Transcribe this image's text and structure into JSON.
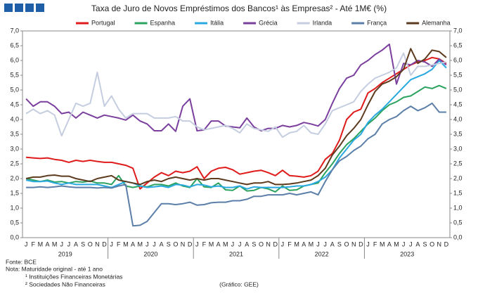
{
  "chart_data": {
    "type": "line",
    "title": "Taxa de Juro de Novos Empréstimos dos Bancos¹ às Empresas² - Até 1M€ (%)",
    "categories": [
      "J",
      "F",
      "M",
      "A",
      "M",
      "J",
      "J",
      "A",
      "S",
      "O",
      "N",
      "D",
      "J",
      "F",
      "M",
      "A",
      "M",
      "J",
      "J",
      "A",
      "S",
      "O",
      "N",
      "D",
      "J",
      "F",
      "M",
      "A",
      "M",
      "J",
      "J",
      "A",
      "S",
      "O",
      "N",
      "D",
      "J",
      "F",
      "M",
      "A",
      "M",
      "J",
      "J",
      "A",
      "S",
      "O",
      "N",
      "D",
      "J",
      "F",
      "M",
      "A",
      "M",
      "J",
      "J",
      "A",
      "S",
      "O",
      "N",
      "D"
    ],
    "years": [
      "2019",
      "2020",
      "2021",
      "2022",
      "2023"
    ],
    "ylim": [
      0,
      7
    ],
    "yticks": [
      {
        "value": 0,
        "label": "0,0"
      },
      {
        "value": 0.5,
        "label": "0,5"
      },
      {
        "value": 1,
        "label": "1,0"
      },
      {
        "value": 1.5,
        "label": "1,5"
      },
      {
        "value": 2,
        "label": "2,0"
      },
      {
        "value": 2.5,
        "label": "2,5"
      },
      {
        "value": 3,
        "label": "3,0"
      },
      {
        "value": 3.5,
        "label": "3,5"
      },
      {
        "value": 4,
        "label": "4,0"
      },
      {
        "value": 4.5,
        "label": "4,5"
      },
      {
        "value": 5,
        "label": "5,0"
      },
      {
        "value": 5.5,
        "label": "5,5"
      },
      {
        "value": 6,
        "label": "6,0"
      },
      {
        "value": 6.5,
        "label": "6,5"
      },
      {
        "value": 7,
        "label": "7,0"
      }
    ],
    "series": [
      {
        "name": "Portugal",
        "color": "#e01b1b",
        "values": [
          2.72,
          2.7,
          2.68,
          2.7,
          2.65,
          2.62,
          2.55,
          2.62,
          2.58,
          2.62,
          2.58,
          2.55,
          2.55,
          2.5,
          2.45,
          2.35,
          1.65,
          1.85,
          2.05,
          2.2,
          2.1,
          2.25,
          2.2,
          2.25,
          2.4,
          2.0,
          2.25,
          2.35,
          2.38,
          2.3,
          2.15,
          2.2,
          2.25,
          2.28,
          2.2,
          2.1,
          2.28,
          2.1,
          2.08,
          2.05,
          2.1,
          2.25,
          2.65,
          2.85,
          3.3,
          4.0,
          4.25,
          4.35,
          4.9,
          5.05,
          5.25,
          5.4,
          5.55,
          5.7,
          5.85,
          5.95,
          6.0,
          6.1,
          6.05,
          5.9
        ]
      },
      {
        "name": "Espanha",
        "color": "#2ca25f",
        "values": [
          2.0,
          1.95,
          1.9,
          1.95,
          1.88,
          1.9,
          1.85,
          1.9,
          1.88,
          1.92,
          1.85,
          1.85,
          1.8,
          2.1,
          1.75,
          1.7,
          1.75,
          1.72,
          1.8,
          1.8,
          1.75,
          1.85,
          1.75,
          1.7,
          2.0,
          1.72,
          1.7,
          1.85,
          1.62,
          1.6,
          1.75,
          1.58,
          1.6,
          1.7,
          1.65,
          1.55,
          1.75,
          1.6,
          1.62,
          1.75,
          1.8,
          1.85,
          2.2,
          2.5,
          2.85,
          3.15,
          3.35,
          3.6,
          3.85,
          4.05,
          4.3,
          4.5,
          4.6,
          4.75,
          4.8,
          4.95,
          5.1,
          5.05,
          5.15,
          5.05
        ]
      },
      {
        "name": "Itália",
        "color": "#29a9e0",
        "values": [
          1.95,
          1.9,
          1.9,
          1.92,
          1.85,
          1.8,
          1.85,
          1.8,
          1.8,
          1.8,
          1.8,
          1.75,
          1.7,
          1.8,
          1.9,
          1.85,
          1.75,
          1.7,
          1.72,
          1.75,
          1.7,
          1.8,
          1.78,
          1.72,
          1.8,
          1.78,
          1.72,
          1.75,
          1.7,
          1.7,
          1.75,
          1.65,
          1.72,
          1.7,
          1.7,
          1.7,
          1.7,
          1.72,
          1.75,
          1.75,
          1.8,
          1.9,
          2.05,
          2.3,
          2.7,
          3.0,
          3.3,
          3.5,
          3.9,
          4.15,
          4.35,
          4.6,
          4.85,
          5.1,
          5.35,
          5.45,
          5.55,
          5.7,
          6.0,
          5.75
        ]
      },
      {
        "name": "Grécia",
        "color": "#7b3f9e",
        "values": [
          4.7,
          4.45,
          4.6,
          4.6,
          4.45,
          4.2,
          4.25,
          4.05,
          4.25,
          4.15,
          4.05,
          4.15,
          4.1,
          4.05,
          3.98,
          4.15,
          3.95,
          3.85,
          3.62,
          3.62,
          3.85,
          3.6,
          4.45,
          4.7,
          3.62,
          3.65,
          3.95,
          3.95,
          3.78,
          3.75,
          3.72,
          4.05,
          3.75,
          3.62,
          3.7,
          3.7,
          3.8,
          3.75,
          3.8,
          3.9,
          3.85,
          3.78,
          4.0,
          4.55,
          5.05,
          5.4,
          5.5,
          5.85,
          6.0,
          6.2,
          6.35,
          6.55,
          5.2,
          5.9,
          5.85,
          6.0,
          5.95,
          5.8,
          6.05,
          5.85
        ]
      },
      {
        "name": "Irlanda",
        "color": "#c5cde0",
        "values": [
          4.2,
          4.35,
          4.2,
          4.3,
          4.15,
          3.45,
          4.0,
          4.55,
          4.45,
          4.55,
          5.6,
          4.45,
          4.8,
          4.35,
          4.05,
          4.2,
          4.2,
          4.2,
          4.05,
          4.05,
          4.05,
          4.1,
          3.95,
          3.95,
          3.75,
          3.65,
          3.7,
          3.75,
          3.8,
          3.7,
          3.55,
          3.85,
          3.7,
          3.65,
          3.6,
          3.75,
          3.4,
          3.55,
          3.6,
          3.8,
          3.55,
          3.5,
          3.85,
          4.3,
          4.4,
          4.5,
          4.6,
          4.95,
          5.2,
          5.4,
          5.5,
          5.6,
          5.75,
          6.25,
          5.5,
          5.8,
          5.8,
          5.85,
          5.9,
          5.95
        ]
      },
      {
        "name": "França",
        "color": "#5b7fa8",
        "values": [
          1.7,
          1.7,
          1.72,
          1.7,
          1.72,
          1.75,
          1.72,
          1.7,
          1.7,
          1.7,
          1.68,
          1.7,
          1.68,
          1.75,
          1.8,
          0.4,
          0.42,
          0.55,
          0.85,
          1.15,
          1.15,
          1.12,
          1.15,
          1.2,
          1.1,
          1.12,
          1.18,
          1.2,
          1.2,
          1.25,
          1.25,
          1.3,
          1.4,
          1.4,
          1.45,
          1.45,
          1.45,
          1.5,
          1.45,
          1.5,
          1.55,
          1.45,
          1.9,
          2.3,
          2.6,
          2.75,
          2.95,
          3.1,
          3.35,
          3.5,
          3.85,
          4.0,
          4.1,
          4.3,
          4.45,
          4.3,
          4.4,
          4.55,
          4.25,
          4.25
        ]
      },
      {
        "name": "Alemanha",
        "color": "#5c3b1e",
        "values": [
          2.0,
          2.05,
          2.05,
          2.1,
          2.12,
          2.08,
          2.08,
          2.0,
          1.95,
          1.9,
          2.0,
          2.05,
          2.1,
          1.95,
          1.9,
          1.85,
          1.8,
          1.9,
          1.95,
          1.9,
          2.0,
          2.05,
          2.0,
          1.95,
          2.0,
          1.95,
          2.0,
          2.0,
          1.95,
          1.9,
          1.85,
          1.8,
          1.85,
          1.85,
          1.9,
          1.8,
          1.8,
          1.82,
          1.85,
          1.9,
          1.95,
          2.1,
          2.35,
          2.8,
          3.1,
          3.45,
          3.7,
          4.0,
          4.5,
          4.95,
          5.2,
          5.3,
          5.45,
          5.7,
          6.4,
          5.9,
          6.05,
          6.35,
          6.3,
          6.1
        ]
      }
    ],
    "notes": [
      "Fonte: BCE",
      "Nota: Maturidade original - até 1 ano",
      "¹ Instituições Financeiras Monetárias",
      "² Sociedades Não Financeiras"
    ],
    "credit": "(Gráfico: GEE)"
  }
}
